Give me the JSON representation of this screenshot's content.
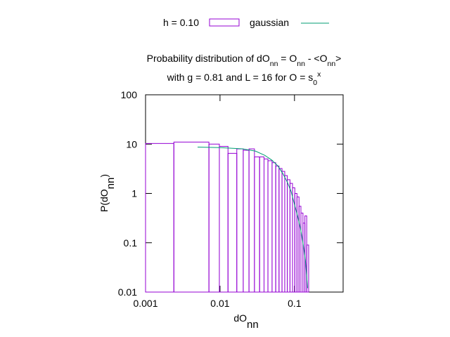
{
  "chart_data": {
    "type": "histogram",
    "title": [
      [
        {
          "text": "Probability distribution of dO"
        },
        {
          "text": "nn",
          "sub": true
        },
        {
          "text": " = O"
        },
        {
          "text": "nn",
          "sub": true
        },
        {
          "text": " - <O"
        },
        {
          "text": "nn",
          "sub": true
        },
        {
          "text": ">"
        }
      ],
      [
        {
          "text": "with g = 0.81 and L = 16 for O = s"
        },
        {
          "text": "0",
          "sub": true
        },
        {
          "text": "x",
          "sup": true
        }
      ]
    ],
    "xlabel": [
      {
        "text": "dO"
      },
      {
        "text": "nn",
        "sub": true
      }
    ],
    "ylabel": [
      {
        "text": "P(dO"
      },
      {
        "text": "nn",
        "sub": true
      },
      {
        "text": ")"
      }
    ],
    "log_x": true,
    "log_y": true,
    "xlim": [
      0.001,
      0.45
    ],
    "ylim": [
      0.01,
      100
    ],
    "xticks": [
      0.001,
      0.01,
      0.1
    ],
    "yticks": [
      0.01,
      0.1,
      1,
      10,
      100
    ],
    "legend": "top",
    "series": [
      {
        "name": "h = 0.10",
        "color": "#9400d3",
        "bins": [
          0.001,
          0.0024,
          0.0071,
          0.0098,
          0.0128,
          0.0168,
          0.0205,
          0.0245,
          0.029,
          0.034,
          0.039,
          0.044,
          0.05,
          0.056,
          0.062,
          0.068,
          0.074,
          0.08,
          0.087,
          0.094,
          0.101,
          0.108,
          0.115,
          0.122,
          0.13,
          0.138,
          0.146,
          0.155
        ],
        "values": [
          10.3,
          11,
          10,
          9.0,
          6.5,
          8,
          7.5,
          8,
          5.5,
          5.5,
          5,
          4.6,
          4.2,
          3.6,
          3.2,
          2.8,
          2.3,
          1.9,
          1.6,
          1.3,
          1.0,
          0.85,
          0.55,
          0.4,
          0.25,
          0.35,
          0.09
        ]
      },
      {
        "name": "gaussian",
        "color": "#009e73",
        "x": [
          0.005,
          0.01,
          0.02,
          0.03,
          0.04,
          0.05,
          0.06,
          0.07,
          0.08,
          0.09,
          0.1,
          0.11,
          0.12,
          0.13,
          0.14,
          0.15
        ],
        "values": [
          8.7,
          8.5,
          8.0,
          7.2,
          5.9,
          4.7,
          3.6,
          2.5,
          1.7,
          1.1,
          0.6,
          0.35,
          0.2,
          0.1,
          0.045,
          0.012
        ]
      }
    ]
  }
}
